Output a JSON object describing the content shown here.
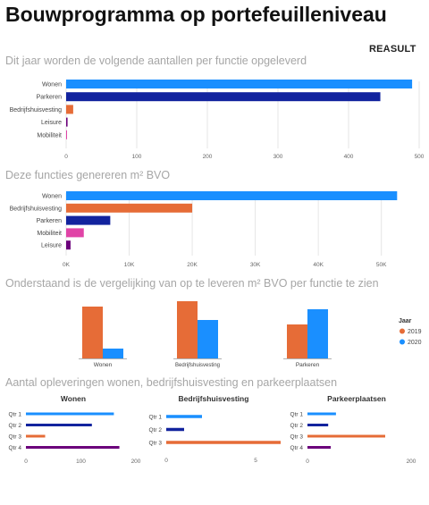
{
  "page": {
    "title": "Bouwprogramma op portefeuilleniveau",
    "brand": "REASULT"
  },
  "colors": {
    "blue": "#1a8fff",
    "navy": "#12239e",
    "orange": "#e66c37",
    "purple": "#6b007b",
    "pink": "#e044a7",
    "tick": "#666666",
    "grid": "#e6e6e6"
  },
  "sections": [
    {
      "title": "Dit jaar worden de volgende aantallen per functie opgeleverd"
    },
    {
      "title": "Deze functies genereren m² BVO"
    },
    {
      "title": "Onderstaand is de vergelijking van op te leveren m² BVO per functie te zien"
    },
    {
      "title": "Aantal opleveringen wonen, bedrijfshuisvesting en parkeerplaatsen"
    }
  ],
  "chart_data": [
    {
      "type": "bar",
      "orientation": "horizontal",
      "categories": [
        "Wonen",
        "Parkeren",
        "Bedrijfshuisvesting",
        "Leisure",
        "Mobiliteit"
      ],
      "values": [
        490,
        445,
        10,
        2,
        1
      ],
      "colors": [
        "#1a8fff",
        "#12239e",
        "#e66c37",
        "#6b007b",
        "#e044a7"
      ],
      "xlim": [
        0,
        500
      ],
      "xticks": [
        0,
        100,
        200,
        300,
        400,
        500
      ],
      "xtick_labels": [
        "0",
        "100",
        "200",
        "300",
        "400",
        "500"
      ]
    },
    {
      "type": "bar",
      "orientation": "horizontal",
      "categories": [
        "Wonen",
        "Bedrijfshuisvesting",
        "Parkeren",
        "Mobiliteit",
        "Leisure"
      ],
      "values": [
        52500,
        20000,
        7000,
        2800,
        700
      ],
      "colors": [
        "#1a8fff",
        "#e66c37",
        "#12239e",
        "#e044a7",
        "#6b007b"
      ],
      "xlim": [
        0,
        56000
      ],
      "xticks": [
        0,
        10000,
        20000,
        30000,
        40000,
        50000
      ],
      "xtick_labels": [
        "0K",
        "10K",
        "20K",
        "30K",
        "40K",
        "50K"
      ]
    },
    {
      "type": "bar",
      "orientation": "vertical",
      "categories": [
        "Wonen",
        "Bedrijfshuisvesting",
        "Parkeren"
      ],
      "series": [
        {
          "name": "2019",
          "color": "#e66c37",
          "values": [
            58,
            64,
            38
          ]
        },
        {
          "name": "2020",
          "color": "#1a8fff",
          "values": [
            11,
            43,
            55
          ]
        }
      ],
      "ylim": [
        0,
        64
      ],
      "legend": {
        "title": "Jaar",
        "position": "right"
      }
    },
    {
      "type": "bar",
      "orientation": "horizontal",
      "title": "Wonen",
      "categories": [
        "Qtr 1",
        "Qtr 2",
        "Qtr 3",
        "Qtr 4"
      ],
      "values": [
        160,
        120,
        35,
        170
      ],
      "colors": [
        "#1a8fff",
        "#12239e",
        "#e66c37",
        "#6b007b"
      ],
      "xlim": [
        0,
        200
      ],
      "xticks": [
        0,
        100,
        200
      ],
      "xtick_labels": [
        "0",
        "100",
        "200"
      ]
    },
    {
      "type": "bar",
      "orientation": "horizontal",
      "title": "Bedrijfshuisvesting",
      "categories": [
        "Qtr 1",
        "Qtr 2",
        "Qtr 3"
      ],
      "values": [
        2,
        1,
        6.4
      ],
      "colors": [
        "#1a8fff",
        "#12239e",
        "#e66c37"
      ],
      "xlim": [
        0,
        6.2
      ],
      "xticks": [
        0,
        5
      ],
      "xtick_labels": [
        "0",
        "5"
      ]
    },
    {
      "type": "bar",
      "orientation": "horizontal",
      "title": "Parkeerplaatsen",
      "categories": [
        "Qtr 1",
        "Qtr 2",
        "Qtr 3",
        "Qtr 4"
      ],
      "values": [
        55,
        40,
        150,
        45
      ],
      "colors": [
        "#1a8fff",
        "#12239e",
        "#e66c37",
        "#6b007b"
      ],
      "xlim": [
        0,
        200
      ],
      "xticks": [
        0,
        200
      ],
      "xtick_labels": [
        "0",
        "200"
      ]
    }
  ]
}
